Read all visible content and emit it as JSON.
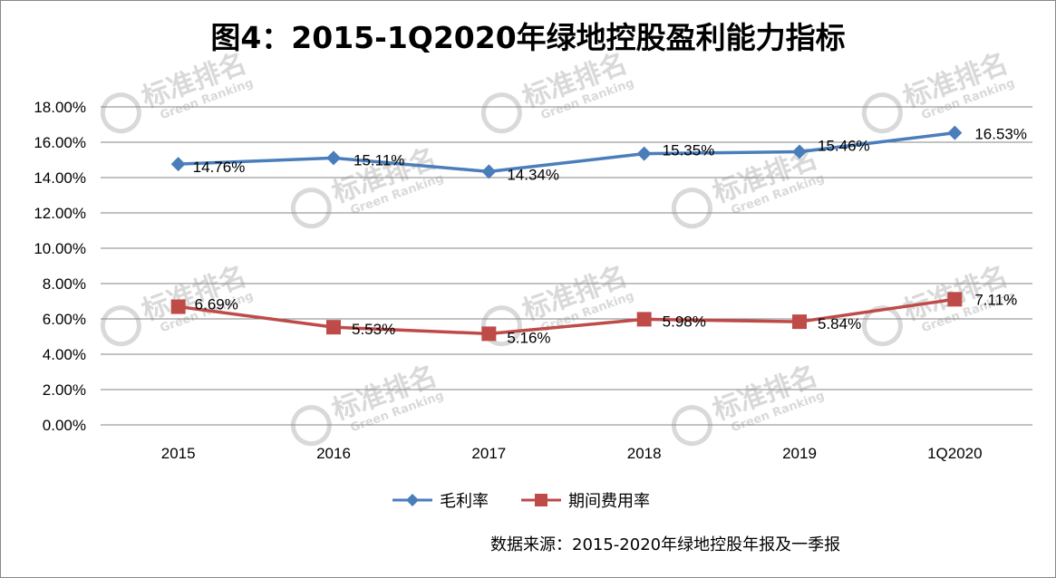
{
  "chart_data": {
    "type": "line",
    "title": "图4：2015-1Q2020年绿地控股盈利能力指标",
    "categories": [
      "2015",
      "2016",
      "2017",
      "2018",
      "2019",
      "1Q2020"
    ],
    "ylim": [
      0,
      18
    ],
    "yticks": [
      0,
      2,
      4,
      6,
      8,
      10,
      12,
      14,
      16,
      18
    ],
    "ytick_labels": [
      "0.00%",
      "2.00%",
      "4.00%",
      "6.00%",
      "8.00%",
      "10.00%",
      "12.00%",
      "14.00%",
      "16.00%",
      "18.00%"
    ],
    "grid": true,
    "legend_position": "bottom",
    "series": [
      {
        "name": "毛利率",
        "values": [
          14.76,
          15.11,
          14.34,
          15.35,
          15.46,
          16.53
        ],
        "labels": [
          "14.76%",
          "15.11%",
          "14.34%",
          "15.35%",
          "15.46%",
          "16.53%"
        ],
        "color": "#4a7ebb",
        "marker": "diamond"
      },
      {
        "name": "期间费用率",
        "values": [
          6.69,
          5.53,
          5.16,
          5.98,
          5.84,
          7.11
        ],
        "labels": [
          "6.69%",
          "5.53%",
          "5.16%",
          "5.98%",
          "5.84%",
          "7.11%"
        ],
        "color": "#be4b48",
        "marker": "square"
      }
    ],
    "source": "数据来源：2015-2020年绿地控股年报及一季报"
  },
  "watermark": {
    "text": "标准排名",
    "subtext": "Green Ranking",
    "color": "#d9d9d9"
  }
}
